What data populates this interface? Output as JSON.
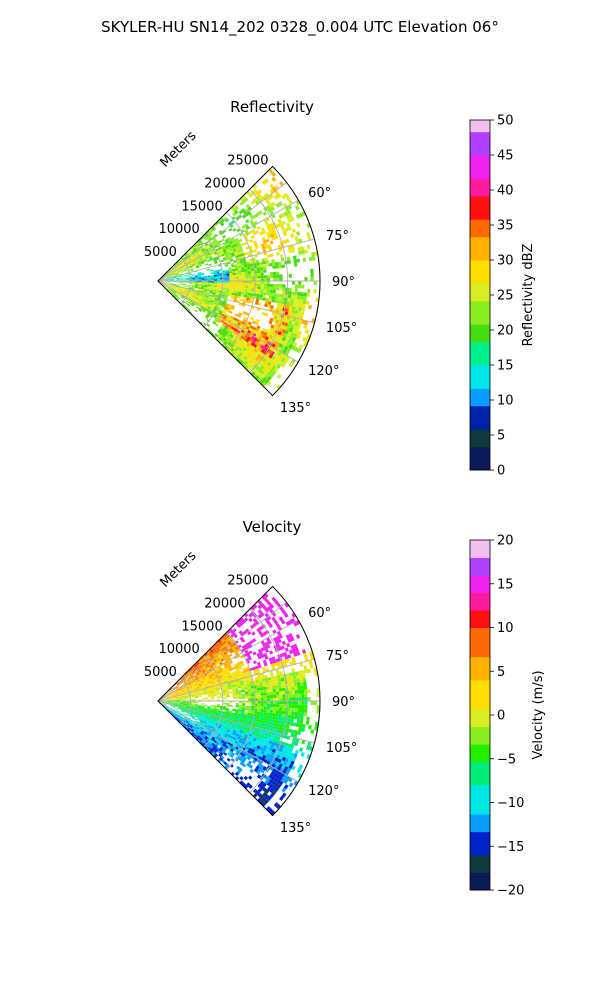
{
  "figure": {
    "suptitle": "SKYLER-HU  SN14_202  0328_0.004 UTC Elevation 06°"
  },
  "chart_data": [
    {
      "type": "polar_sector_ppi",
      "title": "Reflectivity",
      "radial_axis_label": "Meters",
      "theta_range_deg": [
        45,
        135
      ],
      "theta_ticks": [
        60,
        75,
        90,
        105,
        120,
        135
      ],
      "theta_tick_labels": [
        "60°",
        "75°",
        "90°",
        "105°",
        "120°",
        "135°"
      ],
      "r_range_m": [
        0,
        25000
      ],
      "r_ticks": [
        5000,
        10000,
        15000,
        20000,
        25000
      ],
      "r_tick_labels": [
        "5000",
        "10000",
        "15000",
        "20000",
        "25000"
      ],
      "grid": true,
      "colorbar": {
        "label": "Reflectivity dBZ",
        "range": [
          0,
          50
        ],
        "ticks": [
          0,
          5,
          10,
          15,
          20,
          25,
          30,
          35,
          40,
          45,
          50
        ],
        "tick_labels": [
          "0",
          "5",
          "10",
          "15",
          "20",
          "25",
          "30",
          "35",
          "40",
          "45",
          "50"
        ]
      }
    },
    {
      "type": "polar_sector_ppi",
      "title": "Velocity",
      "radial_axis_label": "Meters",
      "theta_range_deg": [
        45,
        135
      ],
      "theta_ticks": [
        60,
        75,
        90,
        105,
        120,
        135
      ],
      "theta_tick_labels": [
        "60°",
        "75°",
        "90°",
        "105°",
        "120°",
        "135°"
      ],
      "r_range_m": [
        0,
        25000
      ],
      "r_ticks": [
        5000,
        10000,
        15000,
        20000,
        25000
      ],
      "r_tick_labels": [
        "5000",
        "10000",
        "15000",
        "20000",
        "25000"
      ],
      "grid": true,
      "colorbar": {
        "label": "Velocity (m/s)",
        "range": [
          -20,
          20
        ],
        "ticks": [
          -20,
          -15,
          -10,
          -5,
          0,
          5,
          10,
          15,
          20
        ],
        "tick_labels": [
          "−20",
          "−15",
          "−10",
          "−5",
          "0",
          "5",
          "10",
          "15",
          "20"
        ]
      }
    }
  ]
}
